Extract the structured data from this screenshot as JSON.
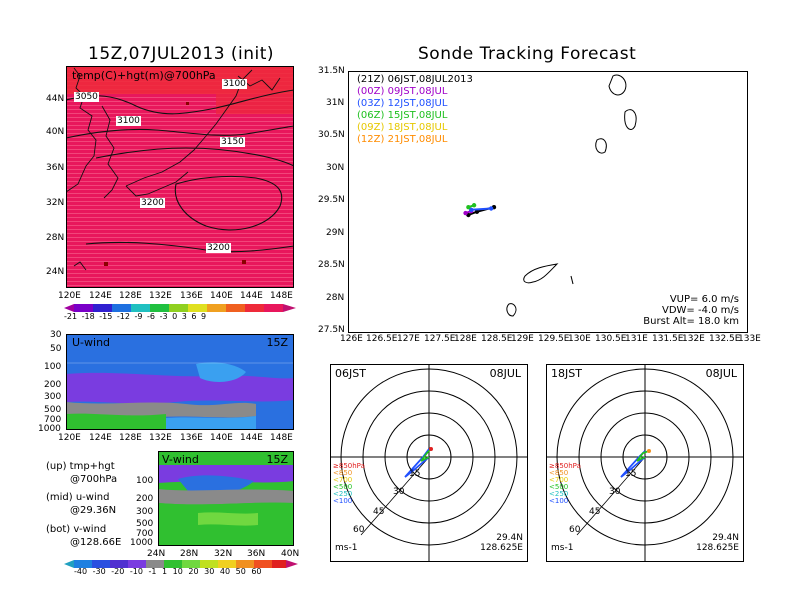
{
  "titles": {
    "left": "15Z,07JUL2013 (init)",
    "right": "Sonde Tracking Forecast"
  },
  "map_panel": {
    "label": "temp(C)+hgt(m)@700hPa",
    "contours": [
      "3050",
      "3100",
      "3100",
      "3150",
      "3200",
      "3200"
    ],
    "lat_labels": [
      "44N",
      "40N",
      "36N",
      "32N",
      "28N",
      "24N"
    ],
    "lon_labels": [
      "120E",
      "124E",
      "128E",
      "132E",
      "136E",
      "140E",
      "144E",
      "148E"
    ],
    "colorbar_labels": [
      "-21",
      "-18",
      "-15",
      "-12",
      "-9",
      "-6",
      "-3",
      "0",
      "3",
      "6",
      "9"
    ],
    "colors": {
      "field": "#e8175c",
      "field_top": "#ee2a3a"
    }
  },
  "u_panel": {
    "label": "U-wind",
    "time": "15Z",
    "y_labels": [
      "30",
      "50",
      "100",
      "200",
      "300",
      "500",
      "700",
      "1000"
    ],
    "x_labels": [
      "120E",
      "124E",
      "128E",
      "132E",
      "136E",
      "140E",
      "144E",
      "148E"
    ]
  },
  "v_panel": {
    "label": "V-wind",
    "time": "15Z",
    "y_labels": [
      "100",
      "200",
      "300",
      "500",
      "700",
      "1000"
    ],
    "x_labels": [
      "24N",
      "28N",
      "32N",
      "36N",
      "40N"
    ]
  },
  "side_text": {
    "up1": "(up) tmp+hgt",
    "up2": "@700hPa",
    "mid1": "(mid) u-wind",
    "mid2": "@29.36N",
    "bot1": "(bot) v-wind",
    "bot2": "@128.66E"
  },
  "wind_colorbar_labels": [
    "-40",
    "-30",
    "-20",
    "-10",
    "-1",
    "1",
    "10",
    "20",
    "30",
    "40",
    "50",
    "60"
  ],
  "track_panel": {
    "legend": [
      {
        "code": "(21Z)",
        "time": "06JST,08JUL2013",
        "color": "#000000"
      },
      {
        "code": "(00Z)",
        "time": "09JST,08JUL",
        "color": "#a000c8"
      },
      {
        "code": "(03Z)",
        "time": "12JST,08JUL",
        "color": "#2050ff"
      },
      {
        "code": "(06Z)",
        "time": "15JST,08JUL",
        "color": "#20c020"
      },
      {
        "code": "(09Z)",
        "time": "18JST,08JUL",
        "color": "#e6c800"
      },
      {
        "code": "(12Z)",
        "time": "21JST,08JUL",
        "color": "#ff8c00"
      }
    ],
    "lat_labels": [
      "31.5N",
      "31N",
      "30.5N",
      "30N",
      "29.5N",
      "29N",
      "28.5N",
      "28N",
      "27.5N"
    ],
    "lon_labels": [
      "126E",
      "126.5E",
      "127E",
      "127.5E",
      "128E",
      "128.5E",
      "129E",
      "129.5E",
      "130E",
      "130.5E",
      "131E",
      "131.5E",
      "132E",
      "132.5E",
      "133E"
    ],
    "vup": "VUP= 6.0 m/s",
    "vdw": "VDW= -4.0 m/s",
    "burst": "Burst Alt= 18.0 km"
  },
  "hodographs": [
    {
      "time": "06JST",
      "date": "08JUL",
      "lat": "29.4N",
      "lon": "128.625E",
      "unit": "ms-1",
      "rings": [
        "15",
        "30",
        "45",
        "60"
      ],
      "legend": [
        "≥850hPa",
        "<850",
        "<700",
        "<500",
        "<250",
        "<100"
      ]
    },
    {
      "time": "18JST",
      "date": "08JUL",
      "lat": "29.4N",
      "lon": "128.625E",
      "unit": "ms-1",
      "rings": [
        "15",
        "30",
        "45",
        "60"
      ],
      "legend": [
        "≥850hPa",
        "<850",
        "<700",
        "<500",
        "<250",
        "<100"
      ]
    }
  ],
  "chart_data": {
    "type": "line",
    "title": "Sonde Tracking Forecast",
    "xlim": [
      126,
      133
    ],
    "ylim": [
      27.5,
      31.5
    ],
    "series": [
      {
        "name": "(21Z) 06JST,08JUL2013",
        "x": [
          128.1,
          128.25,
          128.55
        ],
        "y": [
          29.3,
          29.35,
          29.42
        ]
      },
      {
        "name": "(00Z) 09JST,08JUL",
        "x": [
          128.05,
          128.15
        ],
        "y": [
          29.33,
          29.36
        ]
      },
      {
        "name": "(03Z) 12JST,08JUL",
        "x": [
          128.15,
          128.5
        ],
        "y": [
          29.38,
          29.4
        ]
      },
      {
        "name": "(06Z) 15JST,08JUL",
        "x": [
          128.1,
          128.2
        ],
        "y": [
          29.42,
          29.45
        ]
      }
    ]
  }
}
